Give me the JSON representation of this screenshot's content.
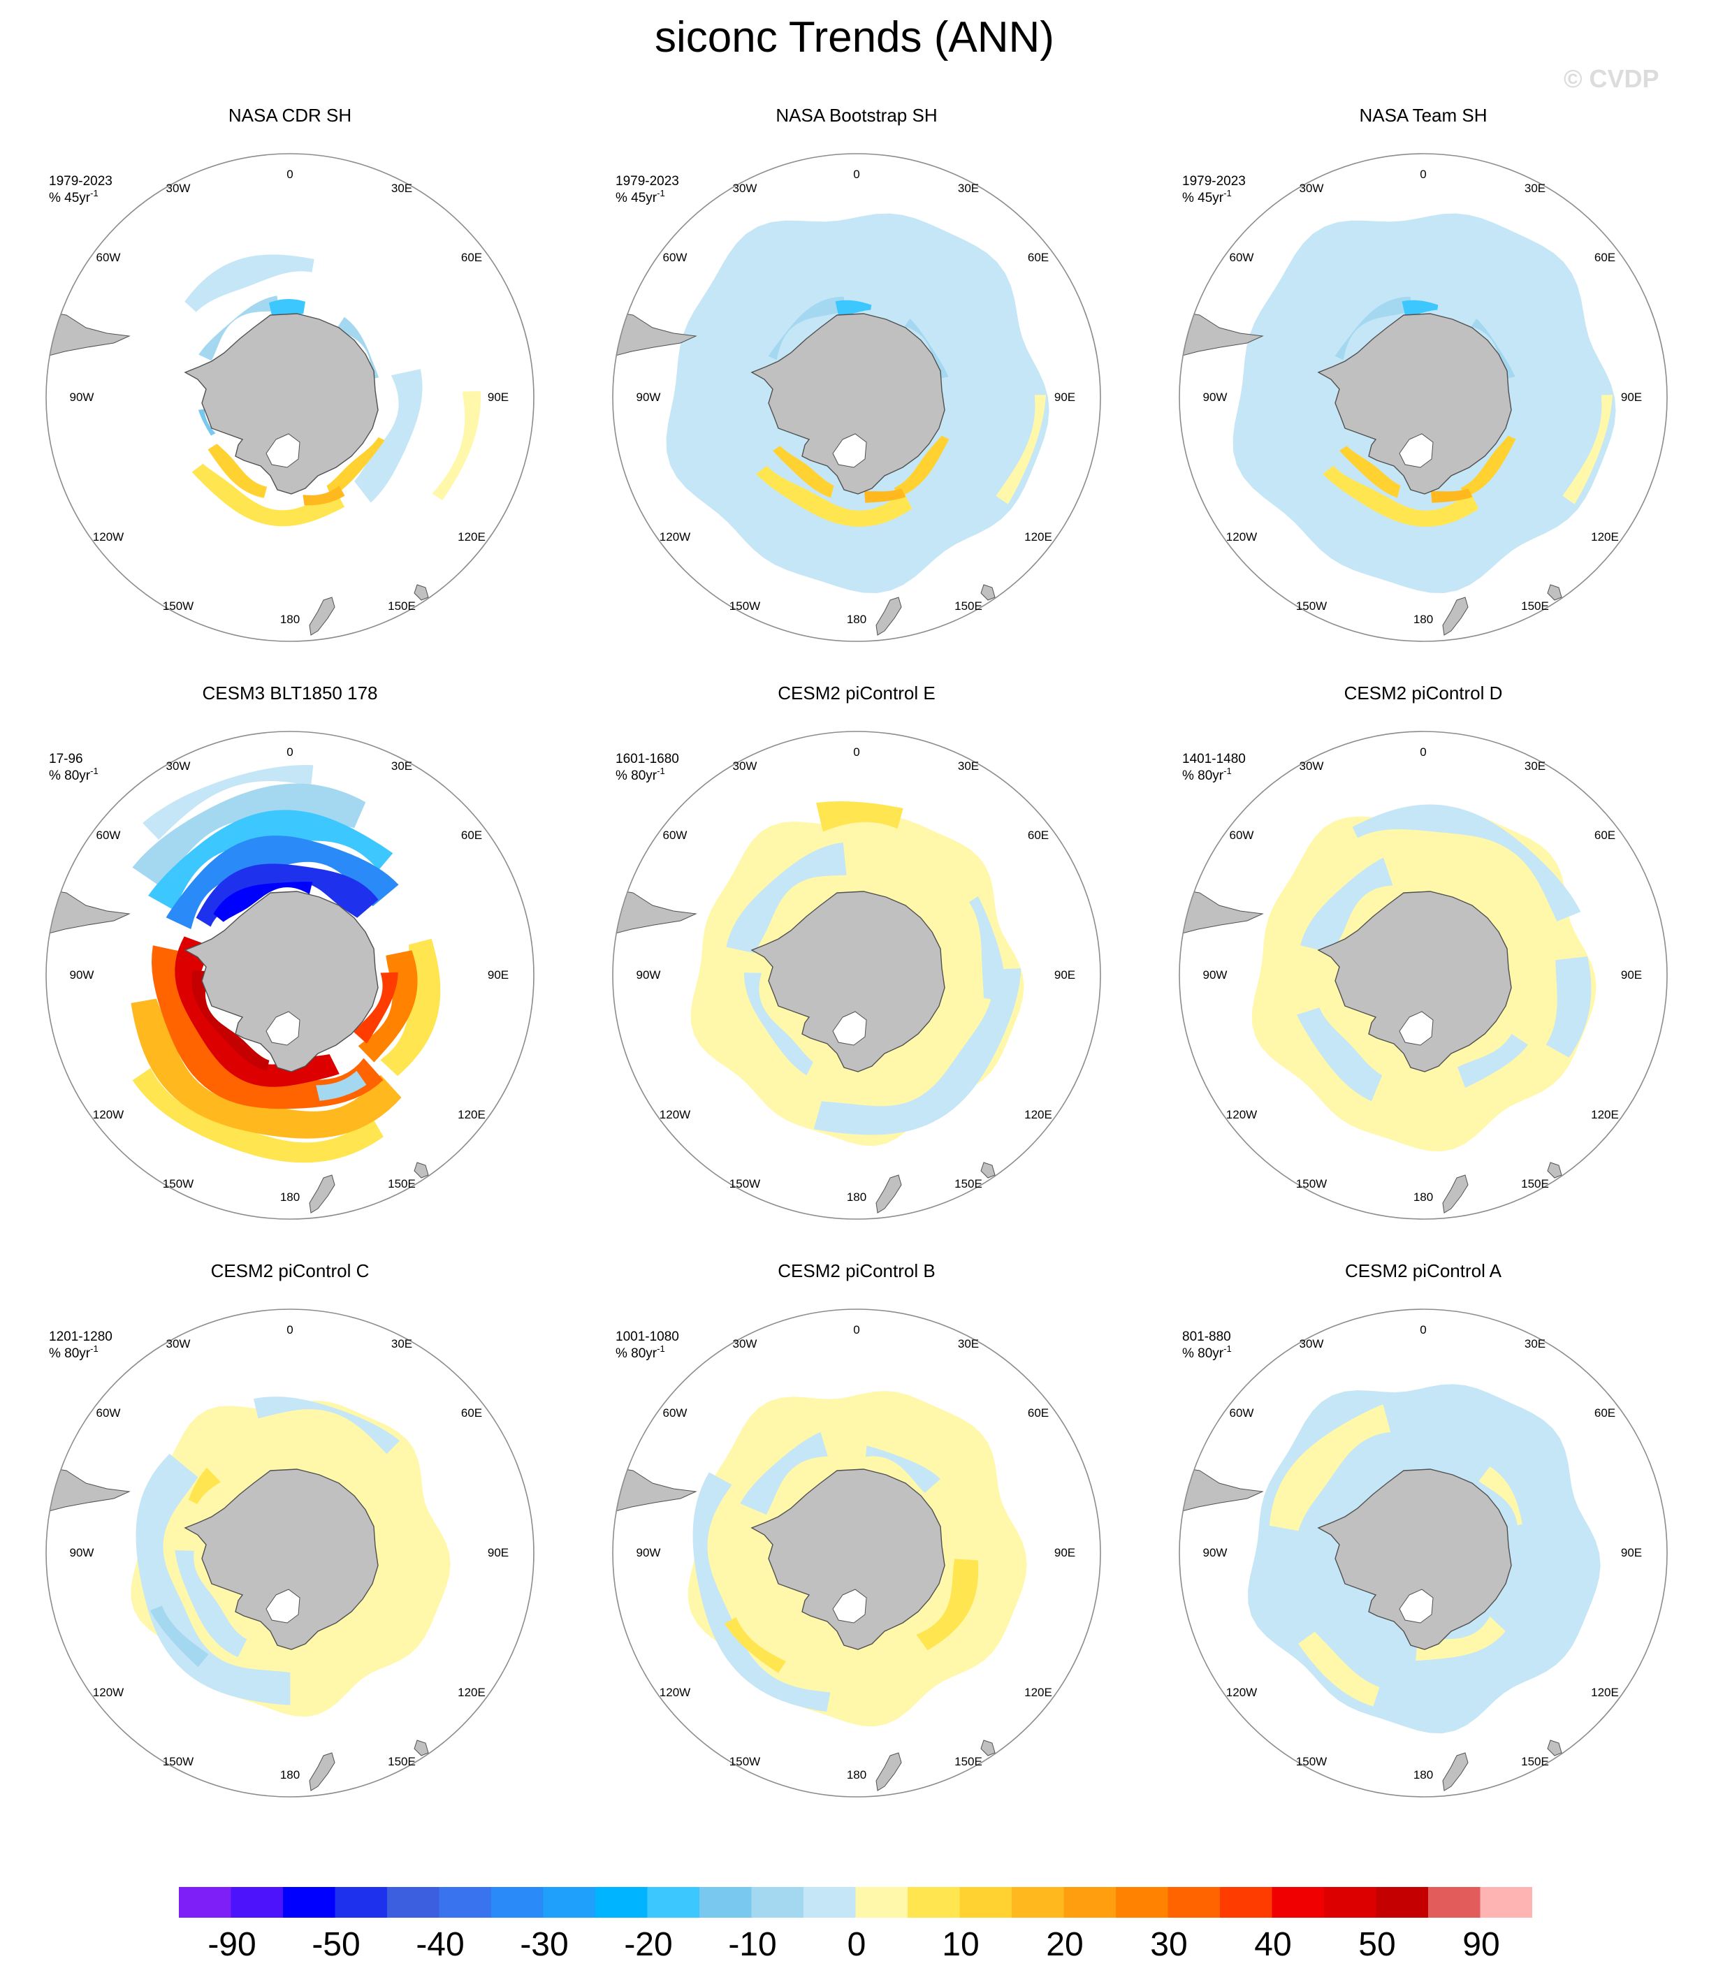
{
  "title": "siconc Trends (ANN)",
  "watermark": "© CVDP",
  "colors": {
    "land": "#c0c0c0",
    "coast": "#505050",
    "circle": "#8c8c8c"
  },
  "lon_labels": [
    "0",
    "30E",
    "60E",
    "90E",
    "120E",
    "150E",
    "180",
    "150W",
    "120W",
    "90W",
    "60W",
    "30W"
  ],
  "chart_data": [
    {
      "type": "heatmap",
      "title": "NASA CDR SH",
      "period": "1979-2023",
      "units": "% 45yr",
      "units_exp": "-1",
      "pattern": "obs_cdr"
    },
    {
      "type": "heatmap",
      "title": "NASA Bootstrap SH",
      "period": "1979-2023",
      "units": "% 45yr",
      "units_exp": "-1",
      "pattern": "obs_boot"
    },
    {
      "type": "heatmap",
      "title": "NASA Team SH",
      "period": "1979-2023",
      "units": "% 45yr",
      "units_exp": "-1",
      "pattern": "obs_team"
    },
    {
      "type": "heatmap",
      "title": "CESM3 BLT1850 178",
      "period": "17-96",
      "units": "% 80yr",
      "units_exp": "-1",
      "pattern": "cesm3"
    },
    {
      "type": "heatmap",
      "title": "CESM2 piControl E",
      "period": "1601-1680",
      "units": "% 80yr",
      "units_exp": "-1",
      "pattern": "picE"
    },
    {
      "type": "heatmap",
      "title": "CESM2 piControl D",
      "period": "1401-1480",
      "units": "% 80yr",
      "units_exp": "-1",
      "pattern": "picD"
    },
    {
      "type": "heatmap",
      "title": "CESM2 piControl C",
      "period": "1201-1280",
      "units": "% 80yr",
      "units_exp": "-1",
      "pattern": "picC"
    },
    {
      "type": "heatmap",
      "title": "CESM2 piControl B",
      "period": "1001-1080",
      "units": "% 80yr",
      "units_exp": "-1",
      "pattern": "picB"
    },
    {
      "type": "heatmap",
      "title": "CESM2 piControl A",
      "period": "801-880",
      "units": "% 80yr",
      "units_exp": "-1",
      "pattern": "picA"
    }
  ],
  "colorbar": {
    "colors": [
      "#7f1ff7",
      "#4d14fb",
      "#0000ff",
      "#1e32ee",
      "#3c5fe0",
      "#3a73ee",
      "#2a8af7",
      "#1ea0fb",
      "#00b4ff",
      "#3cc8ff",
      "#78c8f0",
      "#a4d8f0",
      "#c5e6f6",
      "#fff8aa",
      "#ffe650",
      "#ffd232",
      "#ffb91e",
      "#ff9f0f",
      "#ff8200",
      "#ff6400",
      "#ff3c00",
      "#f00000",
      "#dc0000",
      "#c40000",
      "#e35c5c",
      "#ffb4b4"
    ],
    "labels": [
      "-90",
      "-50",
      "-40",
      "-30",
      "-20",
      "-10",
      "0",
      "10",
      "20",
      "30",
      "40",
      "50",
      "90"
    ]
  }
}
